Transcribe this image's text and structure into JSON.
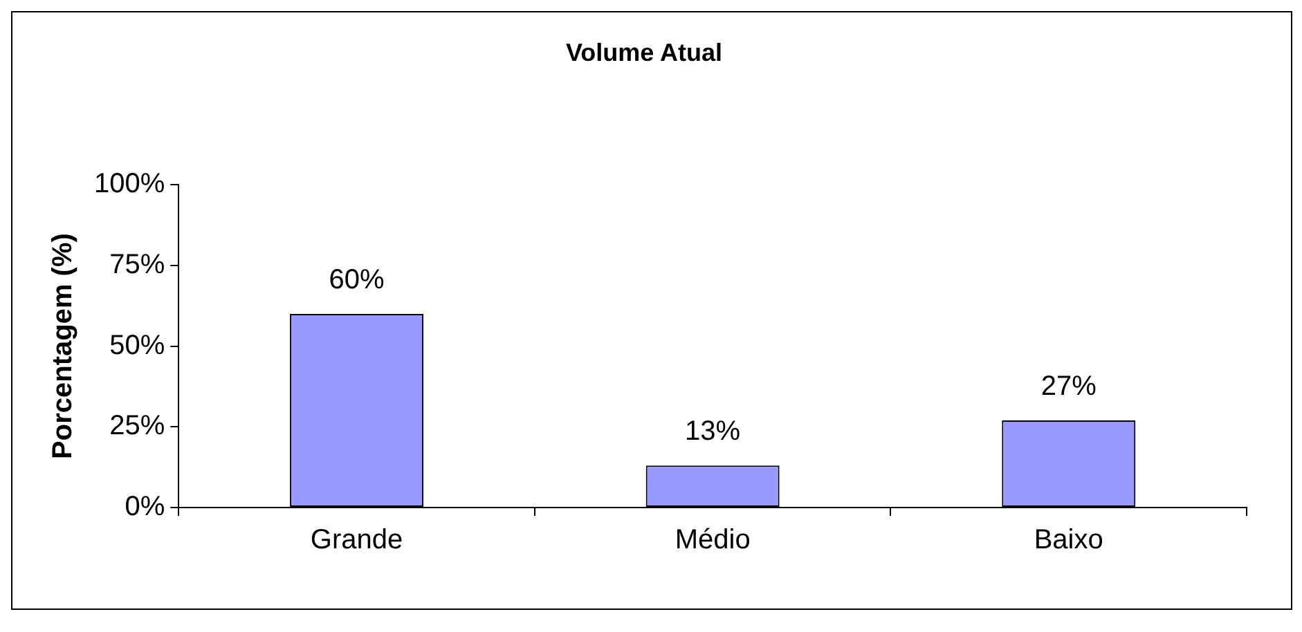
{
  "chart_data": {
    "type": "bar",
    "title": "Volume Atual",
    "ylabel": "Porcentagem (%)",
    "categories": [
      "Grande",
      "Médio",
      "Baixo"
    ],
    "values": [
      60,
      13,
      27
    ],
    "value_labels": [
      "60%",
      "13%",
      "27%"
    ],
    "color": "#9999ff",
    "ylim": [
      0,
      100
    ],
    "yticks": [
      {
        "value": 0,
        "label": "0%"
      },
      {
        "value": 25,
        "label": "25%"
      },
      {
        "value": 50,
        "label": "50%"
      },
      {
        "value": 75,
        "label": "75%"
      },
      {
        "value": 100,
        "label": "100%"
      }
    ],
    "grid": false,
    "legend": false
  }
}
